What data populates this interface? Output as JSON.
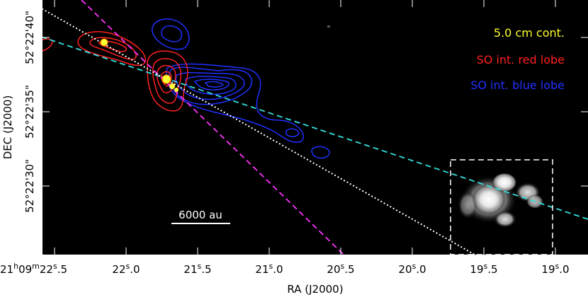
{
  "axes": {
    "xlabel": "RA (J2000)",
    "ylabel": "DEC (J2000)",
    "x_ticks": [
      {
        "h": "21",
        "m": "09",
        "s": "22",
        "f": ".5"
      },
      {
        "s": "22",
        "f": ".0"
      },
      {
        "s": "21",
        "f": ".5"
      },
      {
        "s": "21",
        "f": ".0"
      },
      {
        "s": "20",
        "f": ".5"
      },
      {
        "s": "20",
        "f": ".0"
      },
      {
        "s": "19",
        "f": ".5"
      },
      {
        "s": "19",
        "f": ".0"
      }
    ],
    "y_ticks": [
      "52°22'40\"",
      "52°22'35\"",
      "52°22'30\""
    ]
  },
  "legend": {
    "items": [
      {
        "label": "5.0 cm cont.",
        "color": "#ffff33"
      },
      {
        "label": "SO int. red lobe",
        "color": "#ff2020"
      },
      {
        "label": "SO int. blue lobe",
        "color": "#2030ff"
      }
    ]
  },
  "scalebar": {
    "label": "6000 au"
  },
  "colors": {
    "background": "#000000",
    "red_lobe": "#ff2020",
    "blue_lobe": "#2030ff",
    "continuum": "#ffff33",
    "magenta_line": "#ff33ff",
    "cyan_line": "#33e0e0",
    "white_line": "#ffffff"
  }
}
